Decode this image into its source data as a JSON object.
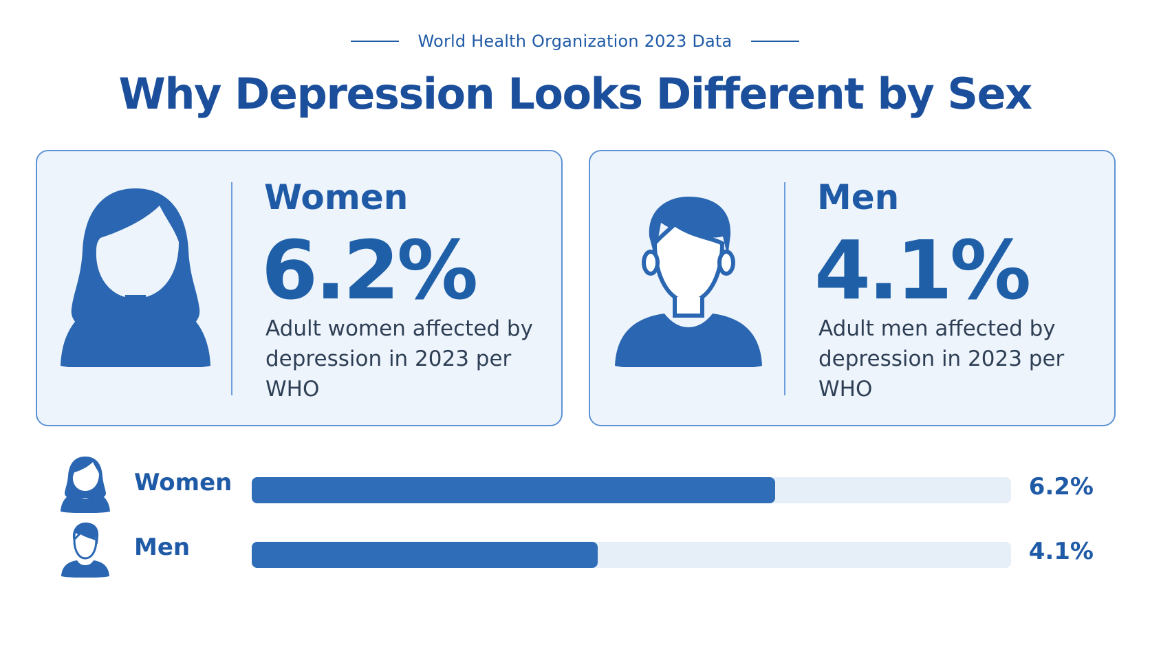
{
  "header": {
    "eyebrow": "World Health Organization 2023 Data",
    "title": "Why Depression Looks Different by Sex"
  },
  "cards": [
    {
      "label": "Women",
      "value": "6.2%",
      "description": "Adult women affected by depression in 2023 per WHO",
      "icon": "woman-icon"
    },
    {
      "label": "Men",
      "value": "4.1%",
      "description": "Adult men affected by depression in 2023 per WHO",
      "icon": "man-icon"
    }
  ],
  "colors": {
    "primary": "#1e5fa8",
    "bar_fill": "#2f6db8",
    "bar_track": "#e6eef8",
    "card_bg": "#eef4fb",
    "card_border": "#5d93d6",
    "body_text": "#2e3f55"
  },
  "chart_data": {
    "type": "bar",
    "orientation": "horizontal",
    "categories": [
      "Women",
      "Men"
    ],
    "values": [
      6.2,
      4.1
    ],
    "value_labels": [
      "6.2%",
      "4.1%"
    ],
    "xlim": [
      0,
      9.0
    ],
    "grid": false
  }
}
